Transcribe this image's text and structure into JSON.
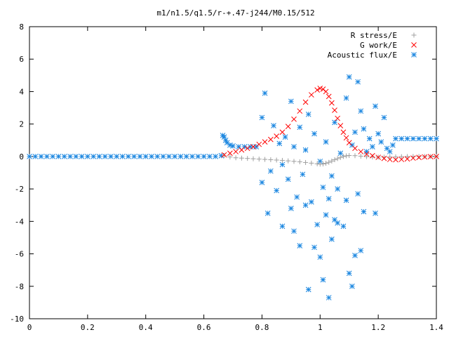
{
  "chart_data": {
    "type": "scatter",
    "title": "m1/n1.5/q1.5/r-+.47-j244/M0.15/512",
    "xlabel": "",
    "ylabel": "",
    "xlim": [
      0,
      1.4
    ],
    "ylim": [
      -10,
      8
    ],
    "xticks": [
      "0",
      "0.2",
      "0.4",
      "0.6",
      "0.8",
      "1",
      "1.2",
      "1.4"
    ],
    "yticks": [
      "-10",
      "-8",
      "-6",
      "-4",
      "-2",
      "0",
      "2",
      "4",
      "6",
      "8"
    ],
    "grid": false,
    "legend_position": "top-right",
    "series": [
      {
        "name": "R stress/E",
        "marker": "plus",
        "color": "#a0a0a0",
        "points": [
          [
            0.67,
            0.05
          ],
          [
            0.69,
            -0.03
          ],
          [
            0.71,
            -0.08
          ],
          [
            0.73,
            -0.1
          ],
          [
            0.75,
            -0.12
          ],
          [
            0.77,
            -0.14
          ],
          [
            0.79,
            -0.16
          ],
          [
            0.81,
            -0.18
          ],
          [
            0.83,
            -0.2
          ],
          [
            0.85,
            -0.22
          ],
          [
            0.87,
            -0.24
          ],
          [
            0.89,
            -0.27
          ],
          [
            0.91,
            -0.3
          ],
          [
            0.93,
            -0.33
          ],
          [
            0.95,
            -0.37
          ],
          [
            0.97,
            -0.41
          ],
          [
            0.99,
            -0.45
          ],
          [
            1.0,
            -0.47
          ],
          [
            1.01,
            -0.46
          ],
          [
            1.02,
            -0.42
          ],
          [
            1.03,
            -0.36
          ],
          [
            1.04,
            -0.28
          ],
          [
            1.05,
            -0.2
          ],
          [
            1.06,
            -0.13
          ],
          [
            1.07,
            -0.06
          ],
          [
            1.08,
            0.0
          ],
          [
            1.09,
            0.04
          ],
          [
            1.1,
            0.06
          ],
          [
            1.12,
            0.05
          ],
          [
            1.14,
            0.02
          ],
          [
            1.16,
            -0.01
          ],
          [
            1.18,
            -0.03
          ],
          [
            1.2,
            -0.04
          ],
          [
            1.22,
            -0.04
          ],
          [
            1.24,
            -0.03
          ],
          [
            1.26,
            -0.02
          ],
          [
            1.28,
            -0.01
          ],
          [
            1.3,
            0.0
          ],
          [
            1.32,
            0.0
          ],
          [
            1.34,
            0.0
          ],
          [
            1.36,
            0.0
          ],
          [
            1.38,
            0.0
          ],
          [
            1.4,
            0.0
          ]
        ]
      },
      {
        "name": "G work/E",
        "marker": "cross",
        "color": "#ff0000",
        "points": [
          [
            0.67,
            0.1
          ],
          [
            0.69,
            0.2
          ],
          [
            0.71,
            0.3
          ],
          [
            0.73,
            0.4
          ],
          [
            0.75,
            0.5
          ],
          [
            0.77,
            0.6
          ],
          [
            0.79,
            0.75
          ],
          [
            0.81,
            0.9
          ],
          [
            0.83,
            1.05
          ],
          [
            0.85,
            1.25
          ],
          [
            0.87,
            1.5
          ],
          [
            0.89,
            1.85
          ],
          [
            0.91,
            2.3
          ],
          [
            0.93,
            2.8
          ],
          [
            0.95,
            3.35
          ],
          [
            0.97,
            3.8
          ],
          [
            0.99,
            4.1
          ],
          [
            1.0,
            4.2
          ],
          [
            1.01,
            4.15
          ],
          [
            1.02,
            4.0
          ],
          [
            1.03,
            3.7
          ],
          [
            1.04,
            3.3
          ],
          [
            1.05,
            2.85
          ],
          [
            1.06,
            2.35
          ],
          [
            1.07,
            1.9
          ],
          [
            1.08,
            1.5
          ],
          [
            1.09,
            1.15
          ],
          [
            1.1,
            0.85
          ],
          [
            1.12,
            0.5
          ],
          [
            1.14,
            0.3
          ],
          [
            1.16,
            0.15
          ],
          [
            1.18,
            0.05
          ],
          [
            1.2,
            -0.05
          ],
          [
            1.22,
            -0.12
          ],
          [
            1.24,
            -0.18
          ],
          [
            1.26,
            -0.2
          ],
          [
            1.28,
            -0.18
          ],
          [
            1.3,
            -0.15
          ],
          [
            1.32,
            -0.1
          ],
          [
            1.34,
            -0.06
          ],
          [
            1.36,
            -0.03
          ],
          [
            1.38,
            -0.01
          ],
          [
            1.4,
            0.0
          ]
        ]
      },
      {
        "name": "Acoustic flux/E",
        "marker": "star",
        "color": "#1a86e0",
        "points": [
          [
            0.0,
            0.0
          ],
          [
            0.02,
            0.0
          ],
          [
            0.04,
            0.0
          ],
          [
            0.06,
            0.0
          ],
          [
            0.08,
            0.0
          ],
          [
            0.1,
            0.0
          ],
          [
            0.12,
            0.0
          ],
          [
            0.14,
            0.0
          ],
          [
            0.16,
            0.0
          ],
          [
            0.18,
            0.0
          ],
          [
            0.2,
            0.0
          ],
          [
            0.22,
            0.0
          ],
          [
            0.24,
            0.0
          ],
          [
            0.26,
            0.0
          ],
          [
            0.28,
            0.0
          ],
          [
            0.3,
            0.0
          ],
          [
            0.32,
            0.0
          ],
          [
            0.34,
            0.0
          ],
          [
            0.36,
            0.0
          ],
          [
            0.38,
            0.0
          ],
          [
            0.4,
            0.0
          ],
          [
            0.42,
            0.0
          ],
          [
            0.44,
            0.0
          ],
          [
            0.46,
            0.0
          ],
          [
            0.48,
            0.0
          ],
          [
            0.5,
            0.0
          ],
          [
            0.52,
            0.0
          ],
          [
            0.54,
            0.0
          ],
          [
            0.56,
            0.0
          ],
          [
            0.58,
            0.0
          ],
          [
            0.6,
            0.0
          ],
          [
            0.62,
            0.0
          ],
          [
            0.64,
            0.0
          ],
          [
            0.66,
            0.05
          ],
          [
            0.665,
            1.3
          ],
          [
            0.67,
            1.2
          ],
          [
            0.675,
            1.0
          ],
          [
            0.68,
            0.85
          ],
          [
            0.69,
            0.7
          ],
          [
            0.7,
            0.65
          ],
          [
            0.72,
            0.6
          ],
          [
            0.74,
            0.6
          ],
          [
            0.76,
            0.6
          ],
          [
            0.78,
            0.6
          ],
          [
            0.8,
            2.4
          ],
          [
            0.81,
            3.9
          ],
          [
            0.8,
            -1.6
          ],
          [
            0.82,
            -3.5
          ],
          [
            0.83,
            -0.9
          ],
          [
            0.84,
            1.9
          ],
          [
            0.85,
            -2.1
          ],
          [
            0.86,
            0.8
          ],
          [
            0.87,
            -0.5
          ],
          [
            0.87,
            -4.3
          ],
          [
            0.88,
            1.2
          ],
          [
            0.89,
            -1.4
          ],
          [
            0.9,
            3.4
          ],
          [
            0.9,
            -3.2
          ],
          [
            0.91,
            0.6
          ],
          [
            0.91,
            -4.6
          ],
          [
            0.92,
            -2.5
          ],
          [
            0.93,
            1.8
          ],
          [
            0.93,
            -5.5
          ],
          [
            0.94,
            -1.1
          ],
          [
            0.95,
            0.4
          ],
          [
            0.95,
            -3.0
          ],
          [
            0.96,
            -8.2
          ],
          [
            0.96,
            2.6
          ],
          [
            0.97,
            -2.8
          ],
          [
            0.98,
            -5.6
          ],
          [
            0.98,
            1.4
          ],
          [
            0.99,
            -4.2
          ],
          [
            1.0,
            -6.2
          ],
          [
            1.0,
            -0.3
          ],
          [
            1.01,
            -7.6
          ],
          [
            1.01,
            -1.9
          ],
          [
            1.02,
            -3.6
          ],
          [
            1.02,
            0.9
          ],
          [
            1.03,
            -8.7
          ],
          [
            1.03,
            -2.6
          ],
          [
            1.04,
            -1.2
          ],
          [
            1.04,
            -5.1
          ],
          [
            1.05,
            2.1
          ],
          [
            1.05,
            -3.9
          ],
          [
            1.06,
            -4.1
          ],
          [
            1.06,
            -2.0
          ],
          [
            1.07,
            0.2
          ],
          [
            1.08,
            -4.3
          ],
          [
            1.09,
            -2.7
          ],
          [
            1.09,
            3.6
          ],
          [
            1.1,
            4.9
          ],
          [
            1.1,
            -7.2
          ],
          [
            1.11,
            -8.0
          ],
          [
            1.11,
            0.7
          ],
          [
            1.12,
            -6.1
          ],
          [
            1.12,
            1.5
          ],
          [
            1.13,
            4.6
          ],
          [
            1.13,
            -2.3
          ],
          [
            1.14,
            -5.8
          ],
          [
            1.14,
            2.8
          ],
          [
            1.15,
            -3.4
          ],
          [
            1.15,
            1.7
          ],
          [
            1.16,
            0.3
          ],
          [
            1.17,
            1.1
          ],
          [
            1.18,
            0.6
          ],
          [
            1.19,
            3.1
          ],
          [
            1.19,
            -3.5
          ],
          [
            1.2,
            1.4
          ],
          [
            1.21,
            0.9
          ],
          [
            1.22,
            2.4
          ],
          [
            1.23,
            0.5
          ],
          [
            1.24,
            0.3
          ],
          [
            1.25,
            0.7
          ],
          [
            1.26,
            1.1
          ],
          [
            1.28,
            1.1
          ],
          [
            1.3,
            1.1
          ],
          [
            1.32,
            1.1
          ],
          [
            1.34,
            1.1
          ],
          [
            1.36,
            1.1
          ],
          [
            1.38,
            1.1
          ],
          [
            1.4,
            1.1
          ]
        ]
      }
    ]
  }
}
